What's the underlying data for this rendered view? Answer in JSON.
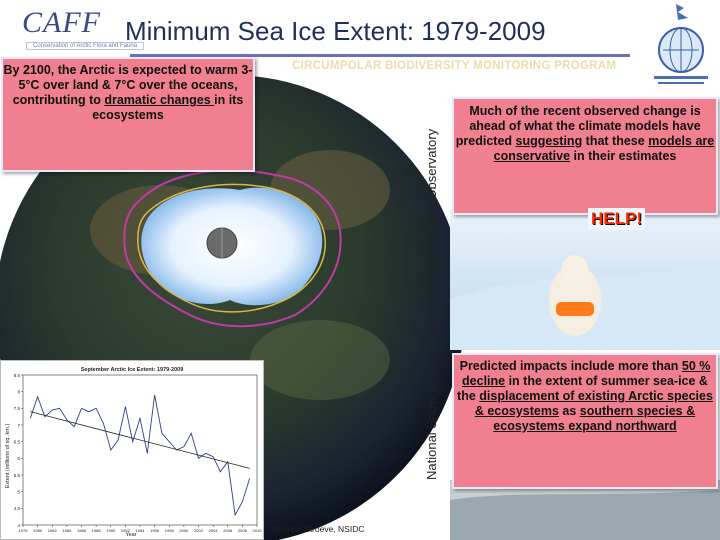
{
  "header": {
    "title": "Minimum Sea Ice Extent: 1979-2009",
    "caff_word": "CAFF",
    "caff_sub": "Conservation of Arctic Flora and Fauna",
    "program": "CIRCUMPOLAR BIODIVERSITY MONITORING PROGRAM"
  },
  "callouts": {
    "left": {
      "p1": "By 2100, the Arctic is expected to warm 3-5°C over land & 7°C over the oceans, contributing to ",
      "u1": "dramatic changes ",
      "p2": "in its ecosystems"
    },
    "right_top": {
      "p1": "Much of the recent observed change is ahead of what the climate models have predicted ",
      "u1": "suggesting",
      "p2": " that these ",
      "u2": "models are conservative",
      "p3": " in their estimates"
    },
    "right_bottom": {
      "p1": "Predicted impacts include more than ",
      "u1": "50 % decline",
      "p2": " in the extent of summer sea-ice & the ",
      "u2": "displacement of existing Arctic species & ecosystems",
      "p3": " as ",
      "u3": "southern species & ecosystems expand northward"
    }
  },
  "help_label": "HELP!",
  "vertical_label": "National Snow and Ice Data Center/NASA Earth Observatory",
  "credit": "Julienne Stroeve, NSIDC",
  "chart_data": {
    "type": "line",
    "title": "September Arctic Ice Extent: 1979-2009",
    "xlabel": "Year",
    "ylabel": "Extent (millions of sq. km.)",
    "xlim": [
      1978,
      2010
    ],
    "ylim": [
      4,
      8.5
    ],
    "x_ticks": [
      1978,
      1980,
      1982,
      1984,
      1986,
      1988,
      1990,
      1992,
      1994,
      1996,
      1998,
      2000,
      2002,
      2004,
      2006,
      2008,
      2010
    ],
    "y_ticks": [
      4,
      4.5,
      5,
      5.5,
      6,
      6.5,
      7,
      7.5,
      8,
      8.5
    ],
    "x": [
      1979,
      1980,
      1981,
      1982,
      1983,
      1984,
      1985,
      1986,
      1987,
      1988,
      1989,
      1990,
      1991,
      1992,
      1993,
      1994,
      1995,
      1996,
      1997,
      1998,
      1999,
      2000,
      2001,
      2002,
      2003,
      2004,
      2005,
      2006,
      2007,
      2008,
      2009
    ],
    "values": [
      7.2,
      7.85,
      7.25,
      7.45,
      7.5,
      7.15,
      6.95,
      7.5,
      7.4,
      7.5,
      7.05,
      6.25,
      6.55,
      7.55,
      6.5,
      7.2,
      6.15,
      7.9,
      6.75,
      6.5,
      6.25,
      6.35,
      6.75,
      6.0,
      6.15,
      6.05,
      5.6,
      5.9,
      4.3,
      4.7,
      5.4
    ],
    "trend": [
      [
        1979,
        7.4
      ],
      [
        2009,
        5.7
      ]
    ],
    "colors": {
      "line": "#2d3f8a",
      "trend": "#222222"
    }
  }
}
